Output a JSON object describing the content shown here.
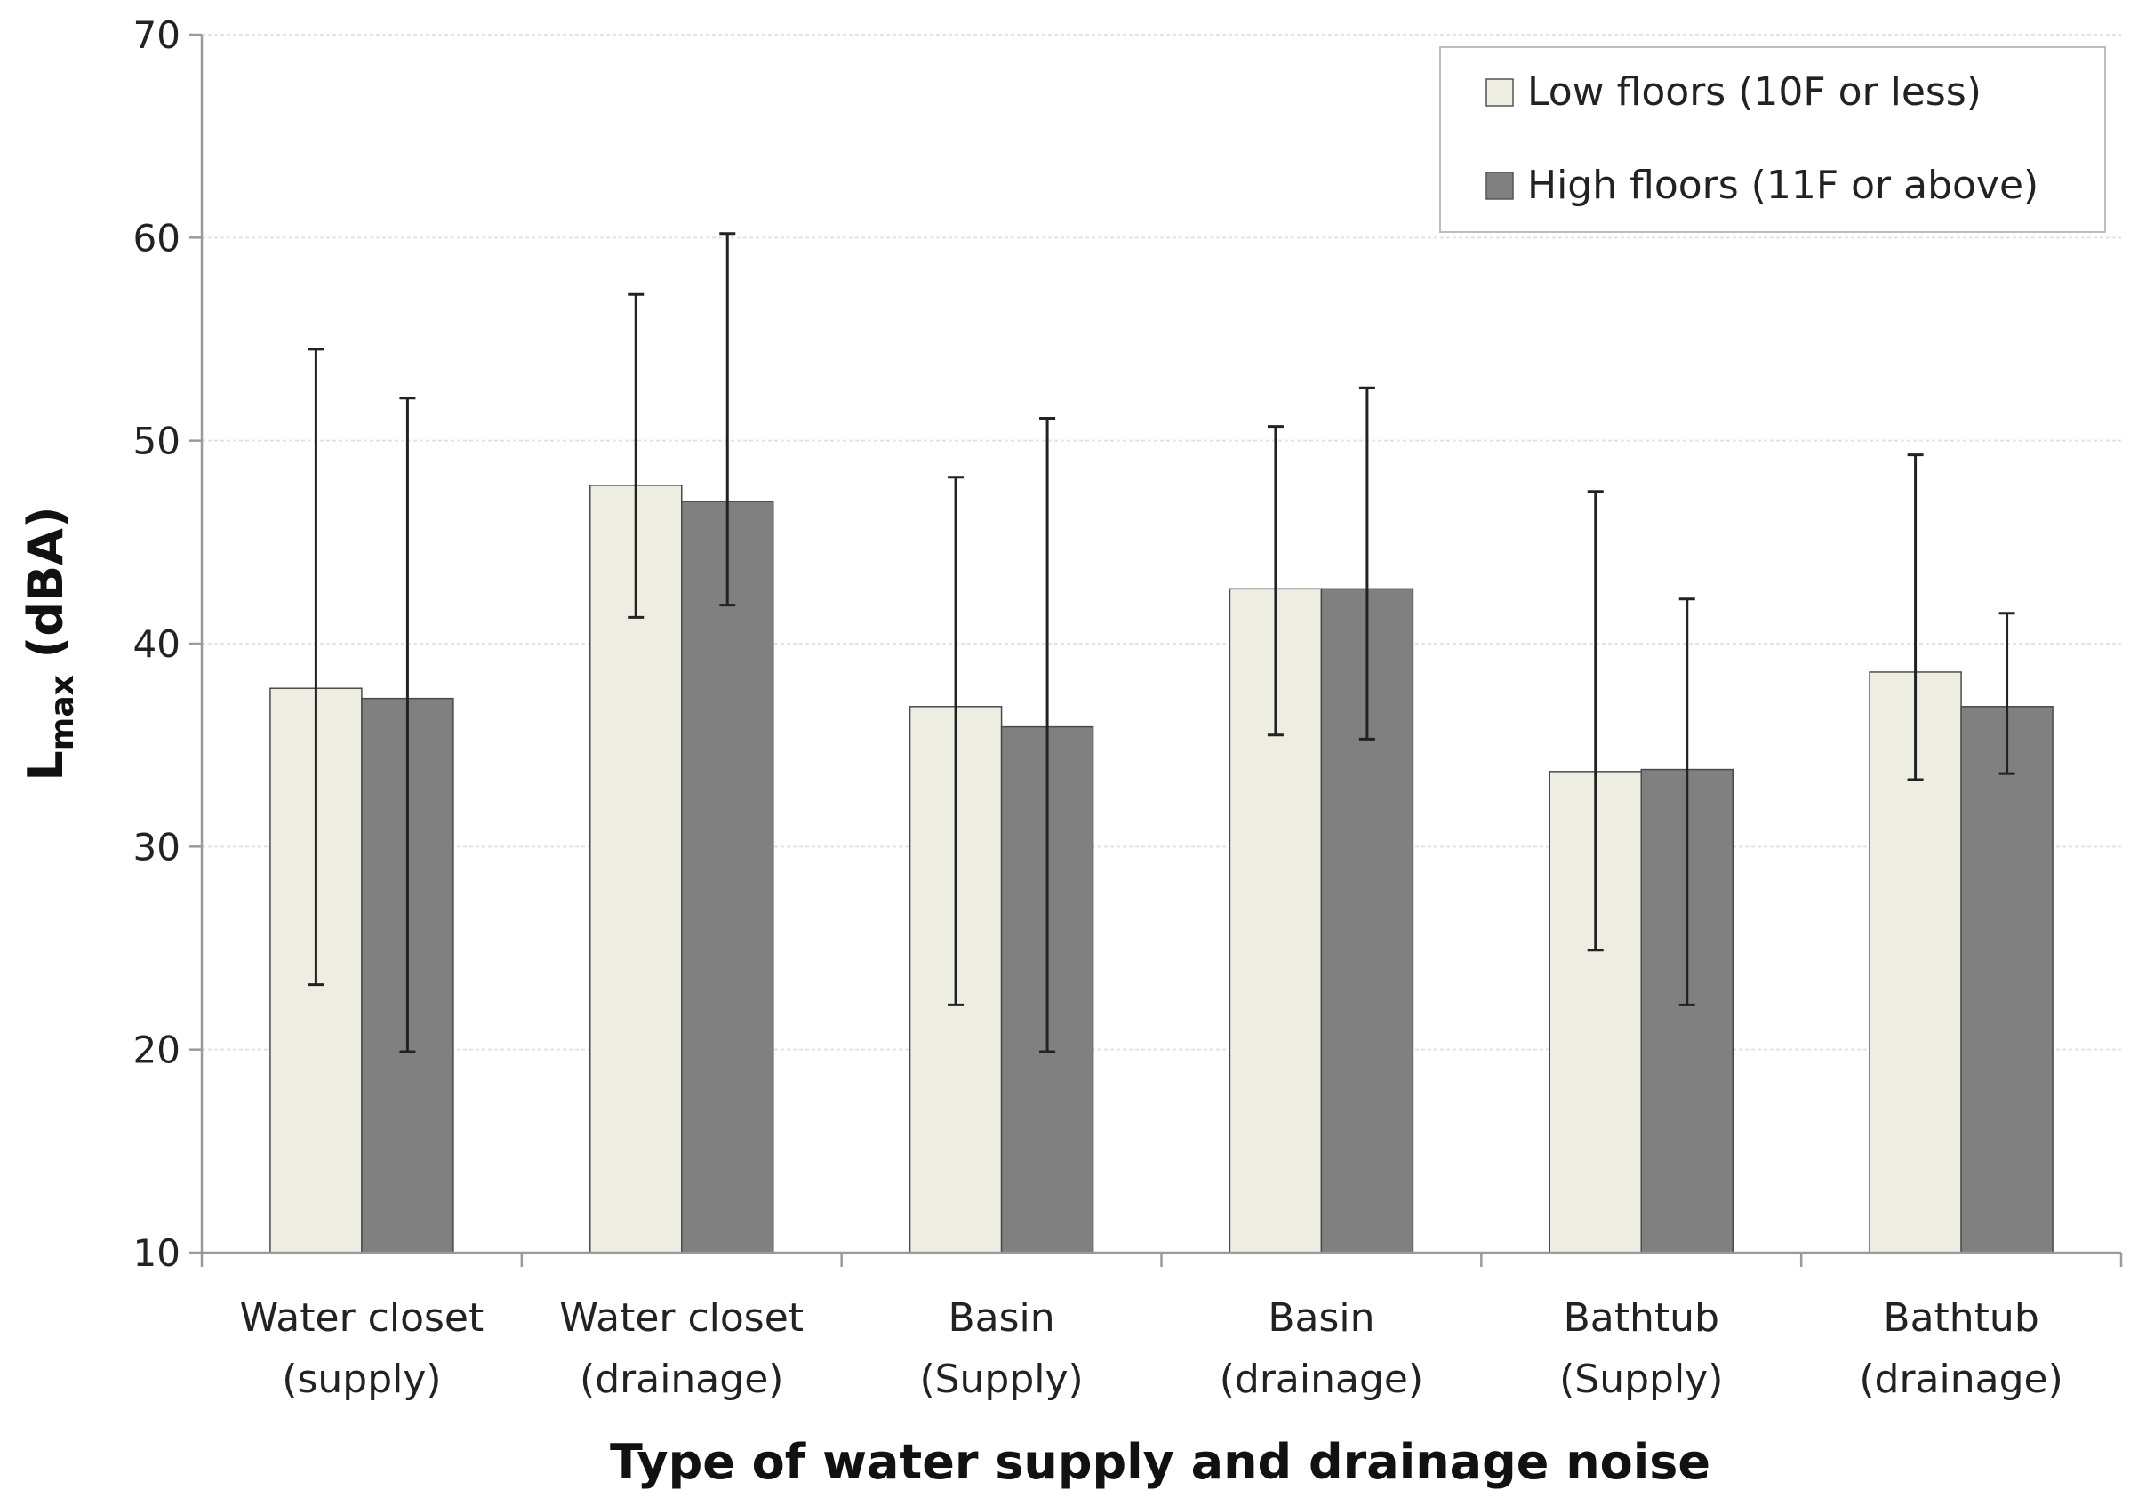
{
  "chart_data": {
    "type": "bar",
    "title": "",
    "xlabel": "Type of water supply and drainage noise",
    "ylabel": "L",
    "ylabel_sub": "max",
    "ylabel_suffix": " (dBA)",
    "ylim": [
      10,
      70
    ],
    "yticks": [
      10,
      20,
      30,
      40,
      50,
      60,
      70
    ],
    "grid": true,
    "legend_position": "top-right",
    "categories": [
      [
        "Water closet",
        "(supply)"
      ],
      [
        "Water closet",
        "(drainage)"
      ],
      [
        "Basin",
        "(Supply)"
      ],
      [
        "Basin",
        "(drainage)"
      ],
      [
        "Bathtub",
        "(Supply)"
      ],
      [
        "Bathtub",
        "(drainage)"
      ]
    ],
    "series": [
      {
        "name": "Low floors (10F or less)",
        "color": "#eeede2",
        "values": [
          37.8,
          47.8,
          36.9,
          42.7,
          33.7,
          38.6
        ],
        "err_high": [
          54.5,
          57.2,
          48.2,
          50.7,
          47.5,
          49.3
        ],
        "err_low": [
          23.2,
          41.3,
          22.2,
          35.5,
          24.9,
          33.3
        ]
      },
      {
        "name": "High floors (11F or above)",
        "color": "#808080",
        "values": [
          37.3,
          47.0,
          35.9,
          42.7,
          33.8,
          36.9
        ],
        "err_high": [
          52.1,
          60.2,
          51.1,
          52.6,
          42.2,
          41.5
        ],
        "err_low": [
          19.9,
          41.9,
          19.9,
          35.3,
          22.2,
          33.6
        ]
      }
    ]
  }
}
